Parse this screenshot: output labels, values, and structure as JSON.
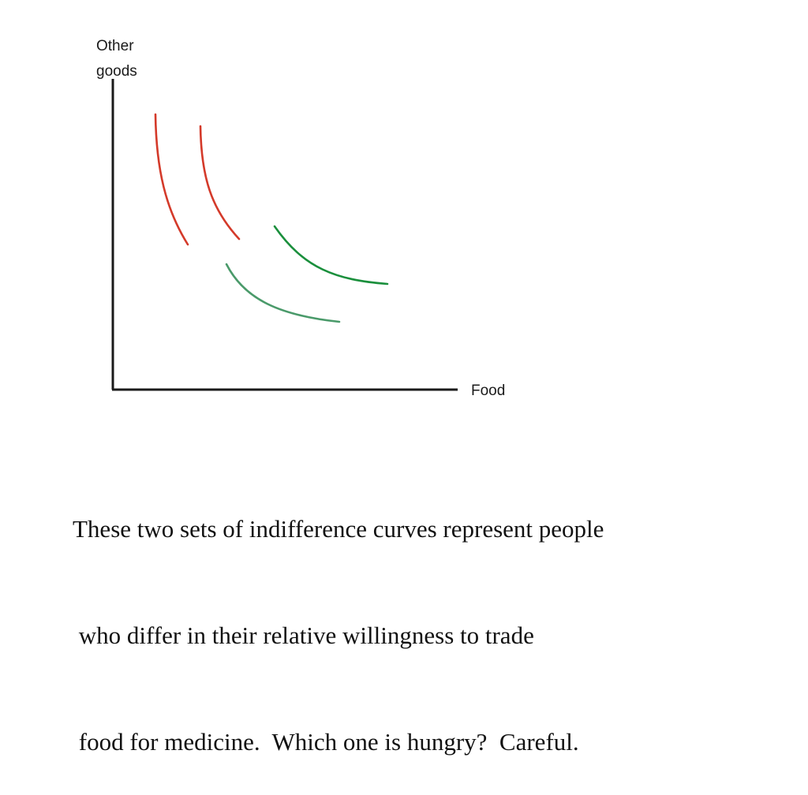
{
  "diagram": {
    "y_axis_label_lines": [
      "Other",
      "goods"
    ],
    "x_axis_label": "Food",
    "colors": {
      "axis": "#1a1a1a",
      "red_curves": "#d43a2a",
      "green_curve_upper": "#1a8f3c",
      "green_curve_lower": "#4a9a6a"
    },
    "curve_sets": [
      {
        "name": "red",
        "count": 2,
        "shape": "steep"
      },
      {
        "name": "green",
        "count": 2,
        "shape": "flat"
      }
    ]
  },
  "caption": {
    "lines": [
      "These two sets of indifference curves represent people",
      " who differ in their relative willingness to trade",
      " food for medicine.  Which one is hungry?  Careful."
    ]
  }
}
